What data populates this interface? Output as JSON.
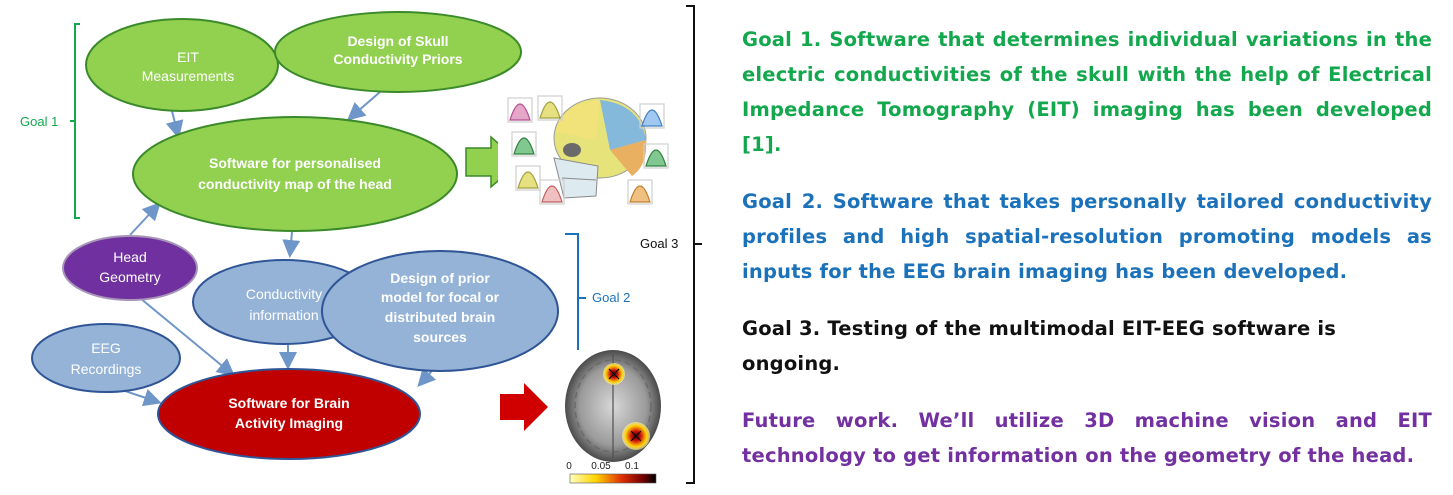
{
  "diagram": {
    "nodes": {
      "eit_measurements": [
        "EIT",
        "Measurements"
      ],
      "skull_priors": [
        "Design of Skull",
        "Conductivity Priors"
      ],
      "personalised_map": [
        "Software for  personalised",
        "conductivity map of the head"
      ],
      "head_geometry": [
        "Head",
        "Geometry"
      ],
      "conductivity_info": [
        "Conductivity",
        "information"
      ],
      "prior_model": [
        "Design of prior",
        "model for focal or",
        "distributed brain",
        "sources"
      ],
      "eeg_recordings": [
        "EEG",
        "Recordings"
      ],
      "brain_imaging": [
        "Software for Brain",
        "Activity Imaging"
      ]
    },
    "brackets": {
      "goal1": "Goal 1",
      "goal2": "Goal 2",
      "goal3": "Goal 3"
    },
    "colorbar": {
      "ticks": [
        "0",
        "0.05",
        "0.1"
      ]
    },
    "colors": {
      "green_fill": "#92d050",
      "green_stroke": "#3b8a2a",
      "blue_fill": "#95b3d7",
      "blue_stroke": "#2f5597",
      "purple_fill": "#7030a0",
      "red_fill": "#c00000",
      "arrow": "#6f96c8",
      "goal1_text": "#13a84d",
      "goal2_text": "#1c72ba",
      "future_text": "#7330a0"
    }
  },
  "goals": {
    "goal1": "Goal 1. Software that determines individual variations in the electric conductivities of the skull with the help of Electrical Impedance Tomography (EIT) imaging has been developed [1].",
    "goal2": "Goal 2. Software that takes personally tailored conductivity profiles and high spatial-resolution promoting models as inputs for the EEG brain imaging has been developed.",
    "goal3": "Goal 3. Testing of the multimodal EIT-EEG software is ongoing.",
    "future": "Future work. We’ll utilize 3D machine vision and EIT technology to get information on the geometry of the head."
  }
}
